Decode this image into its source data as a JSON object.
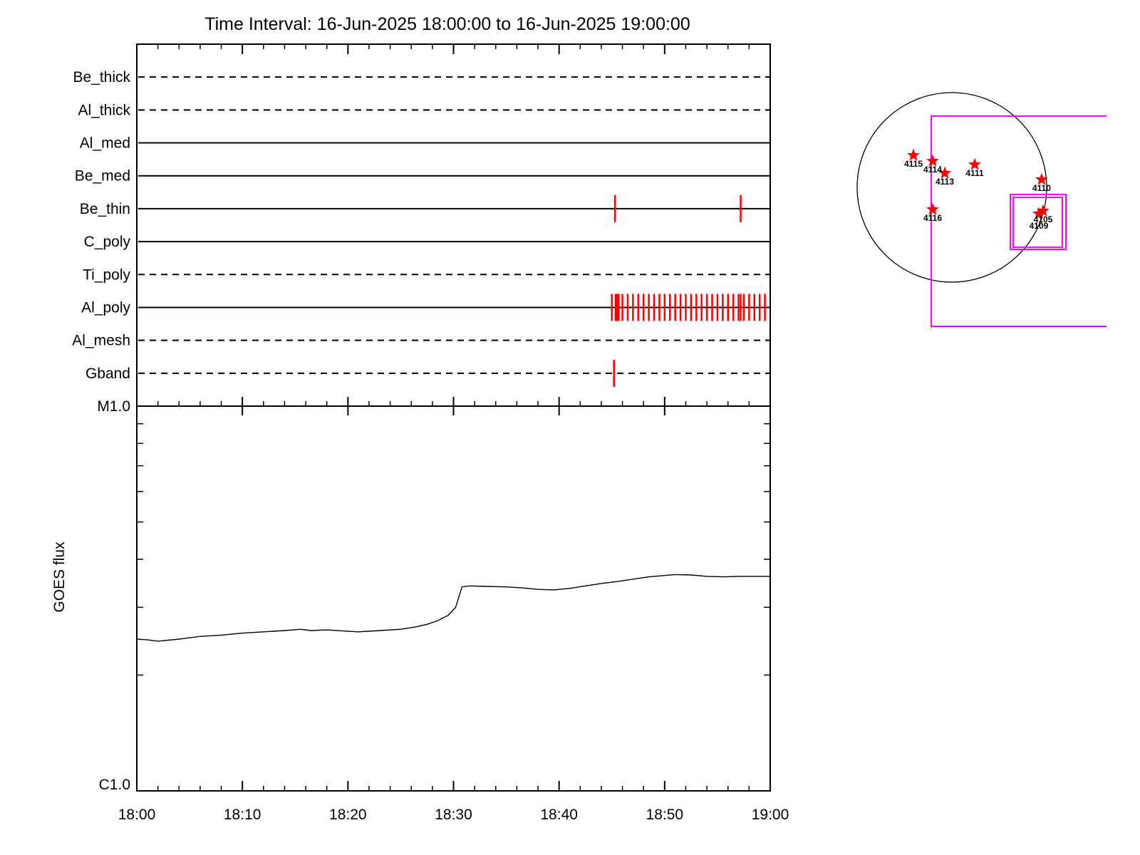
{
  "title": "Time Interval: 16-Jun-2025 18:00:00 to 16-Jun-2025 19:00:00",
  "colors": {
    "axis": "#000000",
    "event_tick": "#ff0000",
    "fov_box": "#ff00ff",
    "active_region_star": "#ff0000",
    "background": "#ffffff"
  },
  "chart_data": [
    {
      "type": "line",
      "name": "goes-flux-plot",
      "title": "Time Interval: 16-Jun-2025 18:00:00 to 16-Jun-2025 19:00:00",
      "ylabel": "GOES flux",
      "y_top_label": "M1.0",
      "y_bottom_label": "C1.0",
      "y_scale": "log",
      "ylim_wm2": [
        1e-06,
        1e-05
      ],
      "y_minor_ticks_c_units": [
        2,
        3,
        4,
        5,
        6,
        7,
        8,
        9
      ],
      "x_tick_labels": [
        "18:00",
        "18:10",
        "18:20",
        "18:30",
        "18:40",
        "18:50",
        "19:00"
      ],
      "x_major_step_min": 10,
      "x_minor_step_min": 2,
      "x_range_min": [
        0,
        60
      ],
      "x_minutes": [
        0,
        1,
        2,
        4,
        6,
        8,
        10,
        12,
        14,
        15.5,
        16.5,
        18,
        20,
        21,
        23,
        25,
        26.5,
        27.5,
        28.5,
        29.5,
        30.2,
        30.8,
        31.5,
        33,
        35,
        36.5,
        38,
        39.5,
        41,
        42.5,
        44,
        45.5,
        47,
        48.5,
        50,
        51,
        52.5,
        54,
        55.5,
        57,
        58.5,
        60
      ],
      "flux_c_units": [
        2.48,
        2.47,
        2.45,
        2.48,
        2.52,
        2.54,
        2.57,
        2.59,
        2.61,
        2.63,
        2.61,
        2.62,
        2.6,
        2.59,
        2.61,
        2.63,
        2.67,
        2.71,
        2.77,
        2.86,
        3.0,
        3.39,
        3.41,
        3.4,
        3.39,
        3.37,
        3.34,
        3.33,
        3.36,
        3.41,
        3.46,
        3.5,
        3.55,
        3.6,
        3.63,
        3.65,
        3.64,
        3.61,
        3.6,
        3.61,
        3.61,
        3.61
      ],
      "grid": false,
      "legend": "none"
    },
    {
      "type": "scatter",
      "name": "xrt-filter-event-timeline",
      "x_range_min": [
        0,
        60
      ],
      "x_major_step_min": 10,
      "x_minor_step_min": 2,
      "channels": [
        {
          "label": "Be_thick",
          "line_style": "dashed",
          "event_times_min": []
        },
        {
          "label": "Al_thick",
          "line_style": "dashed",
          "event_times_min": []
        },
        {
          "label": "Al_med",
          "line_style": "solid",
          "event_times_min": []
        },
        {
          "label": "Be_med",
          "line_style": "solid",
          "event_times_min": []
        },
        {
          "label": "Be_thin",
          "line_style": "solid",
          "event_times_min": [
            45.3,
            57.2
          ]
        },
        {
          "label": "C_poly",
          "line_style": "solid",
          "event_times_min": []
        },
        {
          "label": "Ti_poly",
          "line_style": "dashed",
          "event_times_min": []
        },
        {
          "label": "Al_poly",
          "line_style": "solid",
          "event_times_min": [
            45.0,
            45.5,
            46.0,
            46.5,
            47.0,
            47.5,
            48.0,
            48.5,
            49.0,
            49.5,
            50.0,
            50.5,
            51.0,
            51.5,
            52.0,
            52.5,
            53.0,
            53.5,
            54.0,
            54.5,
            55.0,
            55.5,
            56.0,
            56.5,
            57.0,
            57.2,
            57.5,
            58.0,
            58.5,
            59.0,
            59.5
          ],
          "thick_event_time_min": 45.5
        },
        {
          "label": "Al_mesh",
          "line_style": "dashed",
          "event_times_min": []
        },
        {
          "label": "Gband",
          "line_style": "dashed",
          "event_times_min": [
            45.2
          ]
        }
      ]
    },
    {
      "type": "scatter",
      "name": "solar-disk-active-region-map",
      "units": "solar radii from disk center, +x west, +y north",
      "active_regions": [
        {
          "label": "4115",
          "x": -0.406,
          "y": 0.338
        },
        {
          "label": "4114",
          "x": -0.203,
          "y": 0.278
        },
        {
          "label": "4113",
          "x": -0.075,
          "y": 0.15
        },
        {
          "label": "4111",
          "x": 0.241,
          "y": 0.241
        },
        {
          "label": "4110",
          "x": 0.947,
          "y": 0.083
        },
        {
          "label": "4116",
          "x": -0.203,
          "y": -0.233
        },
        {
          "label": "4105",
          "x": 0.962,
          "y": -0.248
        },
        {
          "label": "4109",
          "x": 0.917,
          "y": -0.278,
          "label_dy": 21
        }
      ],
      "fov_boxes": [
        {
          "name": "large-fov",
          "x0": -0.218,
          "y0": -1.466,
          "x1": 1.632,
          "y1": 0.752,
          "clipped_right": true
        },
        {
          "name": "small-fov-outer",
          "x0": 0.617,
          "y0": -0.654,
          "x1": 1.203,
          "y1": -0.075,
          "clipped_right": false
        },
        {
          "name": "small-fov-inner",
          "x0": 0.647,
          "y0": -0.632,
          "x1": 1.165,
          "y1": -0.105,
          "clipped_right": false
        }
      ]
    }
  ]
}
